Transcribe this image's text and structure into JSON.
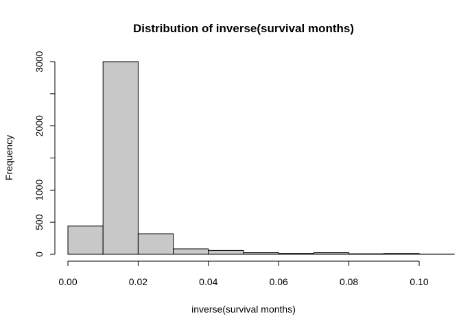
{
  "chart_data": {
    "type": "bar",
    "title": "Distribution of inverse(survival months)",
    "xlabel": "inverse(survival months)",
    "ylabel": "Frequency",
    "bin_edges": [
      0.0,
      0.01,
      0.02,
      0.03,
      0.04,
      0.05,
      0.06,
      0.07,
      0.08,
      0.09,
      0.1,
      0.11
    ],
    "values": [
      440,
      3000,
      320,
      85,
      60,
      25,
      15,
      25,
      8,
      14,
      2
    ],
    "xlim": [
      0.0,
      0.1
    ],
    "ylim": [
      0,
      3000
    ],
    "x_ticks": [
      0.0,
      0.02,
      0.04,
      0.06,
      0.08,
      0.1
    ],
    "x_tick_labels": [
      "0.00",
      "0.02",
      "0.04",
      "0.06",
      "0.08",
      "0.10"
    ],
    "y_ticks": [
      0,
      500,
      1000,
      2000,
      3000
    ],
    "y_tick_labels": [
      "0",
      "500",
      "1000",
      "2000",
      "3000"
    ],
    "bar_color": "#c8c8c8",
    "grid": false,
    "legend": "none"
  }
}
